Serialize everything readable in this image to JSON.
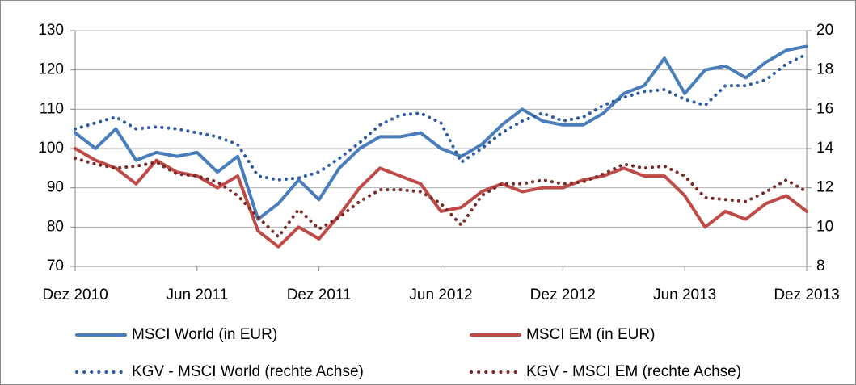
{
  "chart_data": {
    "type": "line",
    "x": [
      0,
      1,
      2,
      3,
      4,
      5,
      6,
      7,
      8,
      9,
      10,
      11,
      12,
      13,
      14,
      15,
      16,
      17,
      18,
      19,
      20,
      21,
      22,
      23,
      24,
      25,
      26,
      27,
      28,
      29,
      30,
      31,
      32,
      33,
      34,
      35,
      36
    ],
    "xlim": [
      0,
      36
    ],
    "xticks": [
      {
        "value": 0,
        "label": "Dez 2010"
      },
      {
        "value": 6,
        "label": "Jun 2011"
      },
      {
        "value": 12,
        "label": "Dez 2011"
      },
      {
        "value": 18,
        "label": "Jun 2012"
      },
      {
        "value": 24,
        "label": "Dez 2012"
      },
      {
        "value": 30,
        "label": "Jun 2013"
      },
      {
        "value": 36,
        "label": "Dez 2013"
      }
    ],
    "ylim": [
      70,
      130
    ],
    "yticks": [
      70,
      80,
      90,
      100,
      110,
      120,
      130
    ],
    "y2lim": [
      8,
      20
    ],
    "y2ticks": [
      8,
      10,
      12,
      14,
      16,
      18,
      20
    ],
    "grid": true,
    "legend": "bottom",
    "series": [
      {
        "name": "MSCI World (in EUR)",
        "color": "#4a7ebb",
        "style": "solid",
        "values": [
          104,
          100,
          105,
          97,
          99,
          98,
          99,
          94,
          98,
          82,
          86,
          92,
          87,
          95,
          100,
          103,
          103,
          104,
          100,
          98,
          101,
          106,
          110,
          107,
          106,
          106,
          109,
          114,
          116,
          123,
          114,
          120,
          121,
          118,
          122,
          125,
          126
        ]
      },
      {
        "name": "MSCI EM (in EUR)",
        "color": "#be4b48",
        "style": "solid",
        "values": [
          100,
          97,
          95,
          91,
          97,
          94,
          93,
          90,
          93,
          79,
          75,
          80,
          77,
          83,
          90,
          95,
          93,
          91,
          84,
          85,
          89,
          91,
          89,
          90,
          90,
          92,
          93,
          95,
          93,
          93,
          88,
          80,
          84,
          82,
          86,
          88,
          84
        ]
      },
      {
        "name": "KGV - MSCI World (rechte Achse)",
        "color": "#2f5c9e",
        "style": "dotted",
        "axis": "y2",
        "values": [
          15,
          15.3,
          15.6,
          15,
          15.1,
          15,
          14.8,
          14.6,
          14.2,
          12.6,
          12.4,
          12.5,
          12.8,
          13.5,
          14.3,
          15.2,
          15.7,
          15.8,
          15.3,
          13.3,
          14,
          14.8,
          15.4,
          15.8,
          15.4,
          15.6,
          16.2,
          16.6,
          16.9,
          17,
          16.5,
          16.2,
          17.2,
          17.2,
          17.5,
          18.3,
          18.8
        ]
      },
      {
        "name": "KGV - MSCI EM (rechte Achse)",
        "color": "#772c2a",
        "style": "dotted",
        "axis": "y2",
        "values": [
          13.5,
          13.2,
          13,
          13.1,
          13.3,
          12.7,
          12.6,
          12.3,
          11.6,
          10.5,
          9.5,
          10.9,
          9.9,
          10.5,
          11.3,
          11.9,
          11.9,
          11.8,
          11.2,
          10.1,
          11.6,
          12.2,
          12.2,
          12.4,
          12.2,
          12.3,
          12.7,
          13.2,
          13,
          13.1,
          12.6,
          11.5,
          11.4,
          11.3,
          11.8,
          12.4,
          11.8
        ]
      }
    ]
  }
}
